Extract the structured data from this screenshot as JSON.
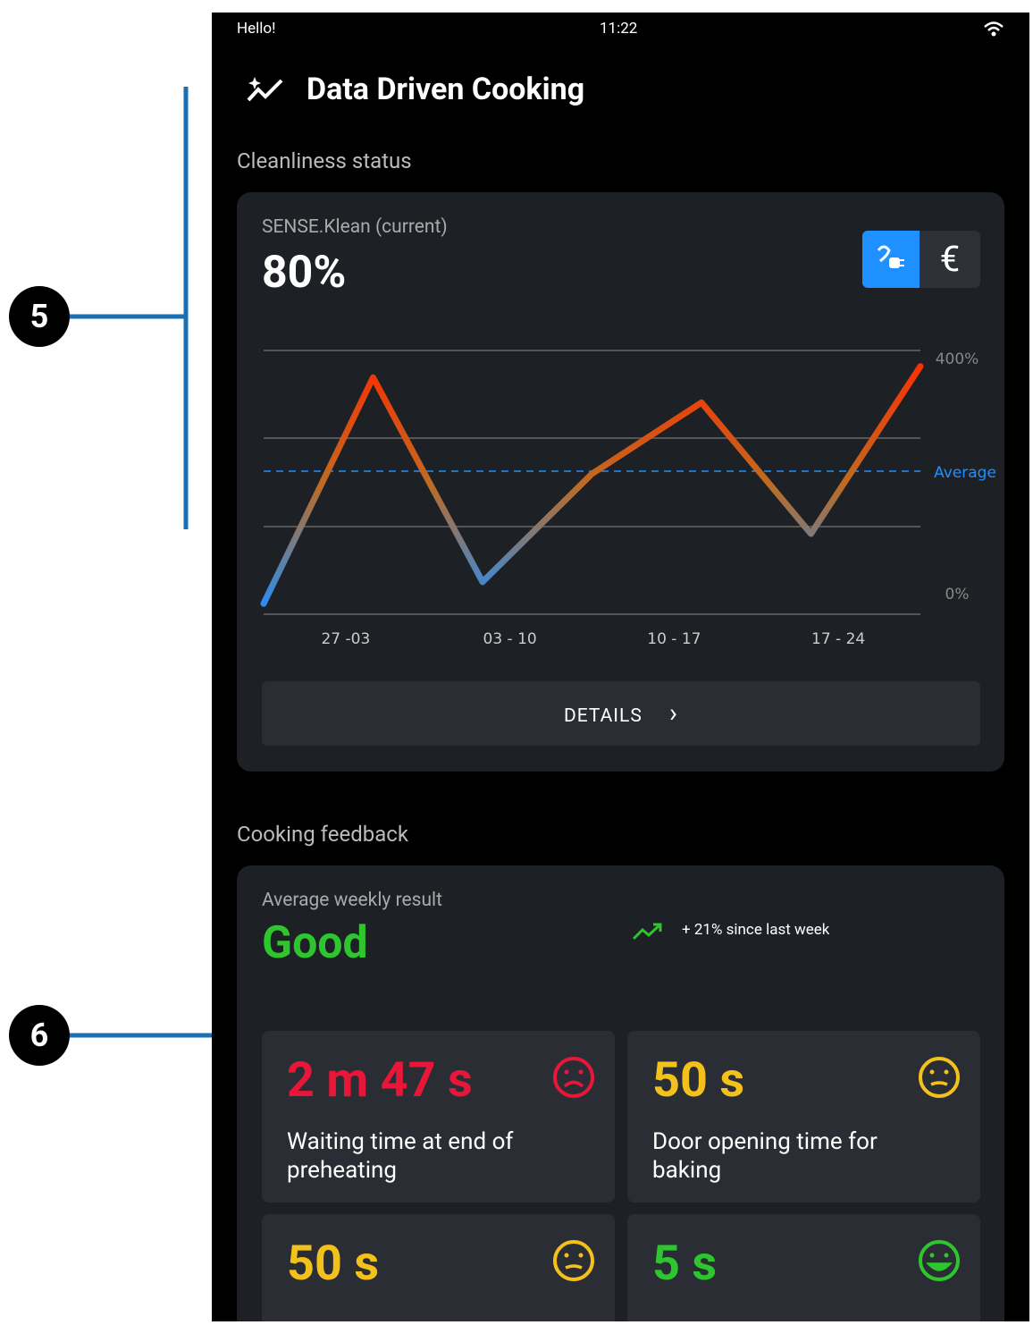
{
  "annotations": [
    "5",
    "6"
  ],
  "status_bar": {
    "greeting": "Hello!",
    "time": "11:22"
  },
  "header": {
    "title": "Data Driven Cooking"
  },
  "cleanliness": {
    "section_title": "Cleanliness status",
    "label": "SENSE.Klean (current)",
    "value": "80%",
    "currency_symbol": "€",
    "chart": {
      "type": "line",
      "values": [
        16,
        359,
        49,
        213,
        321,
        122,
        376
      ],
      "ylim": [
        0,
        400
      ],
      "yticks": [
        {
          "value": 0,
          "label": "0%"
        },
        {
          "value": 400,
          "label": "400%"
        }
      ],
      "average": {
        "value": 217,
        "label": "Average"
      },
      "x_labels": [
        "27 -03",
        "03 - 10",
        "10 - 17",
        "17 - 24"
      ]
    },
    "button": "DETAILS"
  },
  "cooking": {
    "section_title": "Cooking feedback",
    "label": "Average weekly result",
    "result": "Good",
    "trend": "+ 21% since last week",
    "cards": [
      {
        "value": "2 m 47 s",
        "label": "Waiting time at end of preheating",
        "mood": "sad",
        "color": "#e8173a"
      },
      {
        "value": "50 s",
        "label": "Door opening time for baking",
        "mood": "neutral",
        "color": "#f3c11b"
      },
      {
        "value": "50 s",
        "mood": "neutral",
        "color": "#f3c11b"
      },
      {
        "value": "5 s",
        "mood": "happy",
        "color": "#2ec52e"
      }
    ]
  }
}
